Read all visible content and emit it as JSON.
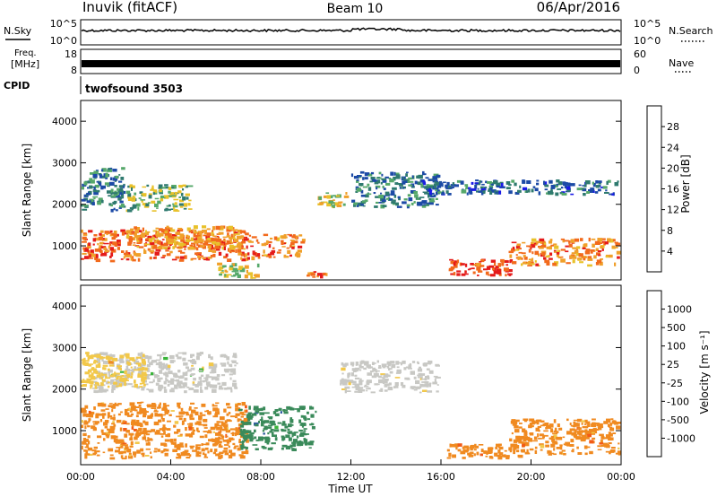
{
  "header": {
    "station": "Inuvik (fitACF)",
    "beam": "Beam 10",
    "date": "06/Apr/2016"
  },
  "strips": {
    "nsky_label": "N.Sky",
    "nsearch_label": "N.Search",
    "freq_label_1": "Freq.",
    "freq_label_2": "[MHz]",
    "nave_label": "Nave",
    "cpid_label": "CPID",
    "cpid_value": "twofsound 3503",
    "noise_left_ticks": [
      "10^5",
      "10^0"
    ],
    "noise_right_ticks": [
      "10^5",
      "10^0"
    ],
    "freq_left_ticks": [
      "18",
      "8"
    ],
    "freq_right_ticks": [
      "60",
      "0"
    ]
  },
  "chart_data": [
    {
      "type": "heatmap",
      "parameter": "power",
      "ylabel": "Slant Range [km]",
      "colorbar_label": "Power [dB]",
      "ylim": [
        180,
        4500
      ],
      "yticks": [
        1000,
        2000,
        3000,
        4000
      ],
      "colorbar_ticks": [
        4,
        8,
        12,
        16,
        20,
        24,
        28
      ],
      "colorbar_range": [
        0,
        32
      ],
      "colors": [
        "#1a1ae6",
        "#1c4aa6",
        "#2f7a6f",
        "#56a86a",
        "#e8c12a",
        "#f0a02a",
        "#f26a1c",
        "#e41a1a"
      ],
      "regions": [
        {
          "x": [
            0.0,
            8.0
          ],
          "y": [
            600,
            1400
          ],
          "value": 26
        },
        {
          "x": [
            2.0,
            7.5
          ],
          "y": [
            900,
            1500
          ],
          "value": 22
        },
        {
          "x": [
            8.0,
            10.0
          ],
          "y": [
            700,
            1300
          ],
          "value": 24
        },
        {
          "x": [
            10.0,
            11.0
          ],
          "y": [
            200,
            400
          ],
          "value": 26
        },
        {
          "x": [
            16.2,
            19.2
          ],
          "y": [
            250,
            700
          ],
          "value": 29
        },
        {
          "x": [
            19.0,
            24.0
          ],
          "y": [
            500,
            1200
          ],
          "value": 24
        },
        {
          "x": [
            2.0,
            5.0
          ],
          "y": [
            1800,
            2500
          ],
          "value": 14
        },
        {
          "x": [
            10.5,
            12.0
          ],
          "y": [
            1900,
            2300
          ],
          "value": 18
        },
        {
          "x": [
            12.0,
            16.0
          ],
          "y": [
            1900,
            2800
          ],
          "value": 10
        },
        {
          "x": [
            15.0,
            24.0
          ],
          "y": [
            2200,
            2600
          ],
          "value": 8
        },
        {
          "x": [
            0.0,
            2.0
          ],
          "y": [
            1800,
            2900
          ],
          "value": 10
        },
        {
          "x": [
            6.0,
            8.0
          ],
          "y": [
            200,
            600
          ],
          "value": 18
        }
      ]
    },
    {
      "type": "heatmap",
      "parameter": "velocity",
      "ylabel": "Slant Range [km]",
      "xlabel": "Time UT",
      "colorbar_label": "Velocity [m s⁻¹]",
      "ylim": [
        180,
        4500
      ],
      "yticks": [
        1000,
        2000,
        3000,
        4000
      ],
      "xlim": [
        0,
        24
      ],
      "xticks": [
        "00:00",
        "04:00",
        "08:00",
        "12:00",
        "16:00",
        "20:00",
        "00:00"
      ],
      "colorbar_ticks": [
        "1000",
        "500",
        "100",
        "25",
        "-25",
        "-100",
        "-500",
        "-1000"
      ],
      "colors": [
        "#1f3fbf",
        "#2f5f9f",
        "#3a8a5a",
        "#3ab43a",
        "#c8c8c4",
        "#f2c84a",
        "#f08a20",
        "#f25a16",
        "#e41a1a"
      ],
      "regions": [
        {
          "x": [
            0.0,
            7.5
          ],
          "y": [
            300,
            1700
          ],
          "value": -200
        },
        {
          "x": [
            7.0,
            10.5
          ],
          "y": [
            500,
            1600
          ],
          "value": 300
        },
        {
          "x": [
            0.5,
            7.0
          ],
          "y": [
            1900,
            2900
          ],
          "value": 0
        },
        {
          "x": [
            11.5,
            16.0
          ],
          "y": [
            1900,
            2700
          ],
          "value": 0
        },
        {
          "x": [
            16.2,
            20.0
          ],
          "y": [
            300,
            700
          ],
          "value": -120
        },
        {
          "x": [
            19.0,
            24.0
          ],
          "y": [
            400,
            1300
          ],
          "value": -300
        },
        {
          "x": [
            0.0,
            3.0
          ],
          "y": [
            2000,
            2900
          ],
          "value": -100
        }
      ]
    }
  ]
}
